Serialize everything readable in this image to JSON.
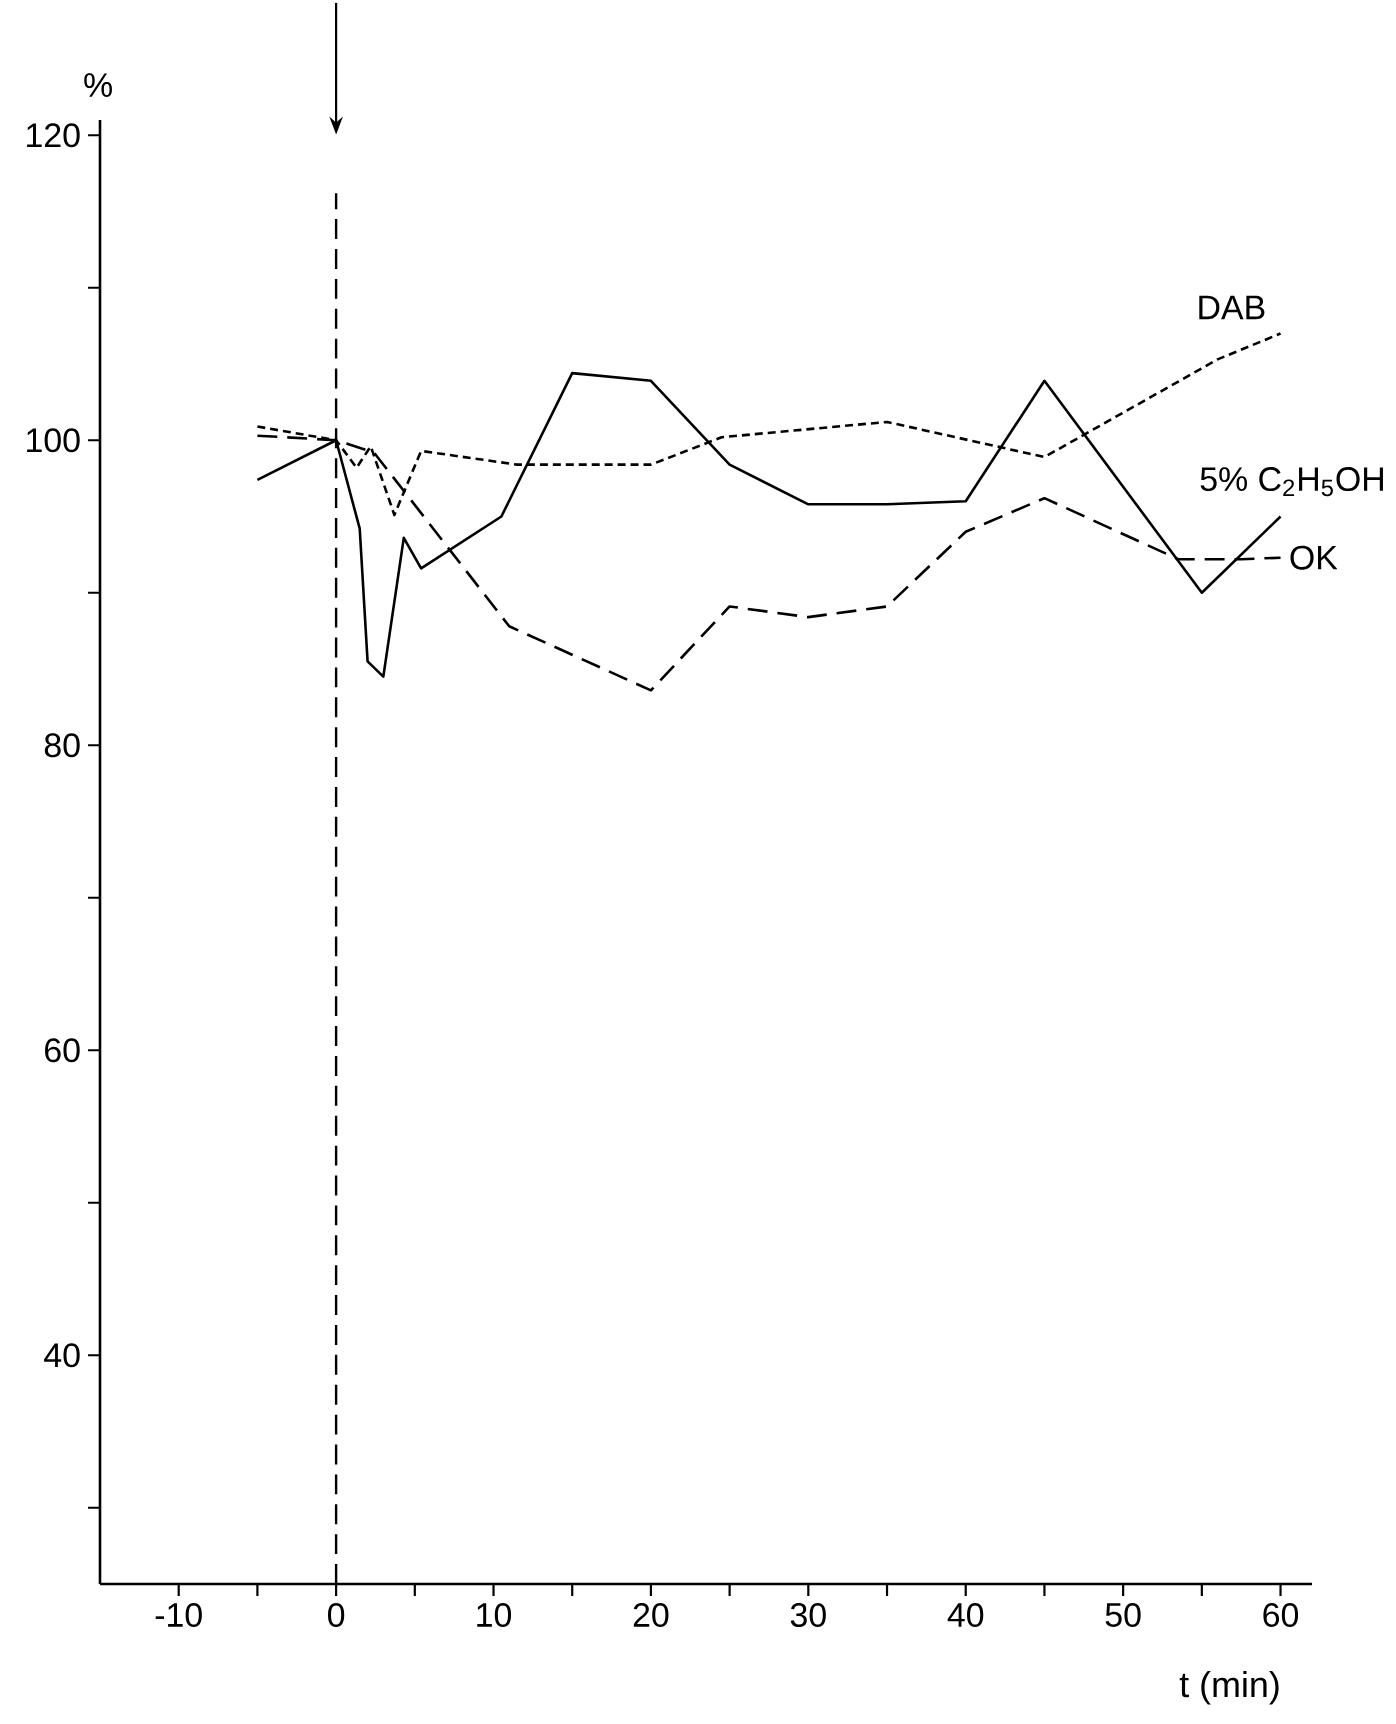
{
  "chart_data": {
    "type": "line",
    "xlabel": "t (min)",
    "ylabel": "%",
    "xlim": [
      -15,
      62
    ],
    "ylim": [
      25,
      121
    ],
    "xticks": [
      -10,
      {
        "value": -5,
        "label": null
      },
      0,
      {
        "value": 5,
        "label": null
      },
      10,
      {
        "value": 15,
        "label": null
      },
      20,
      {
        "value": 25,
        "label": null
      },
      30,
      {
        "value": 35,
        "label": null
      },
      40,
      {
        "value": 45,
        "label": null
      },
      50,
      {
        "value": 55,
        "label": null
      },
      60
    ],
    "yticks": [
      {
        "value": 30,
        "label": null
      },
      40,
      {
        "value": 50,
        "label": null
      },
      60,
      {
        "value": 70,
        "label": null
      },
      80,
      {
        "value": 90,
        "label": null
      },
      100,
      {
        "value": 110,
        "label": null
      },
      120
    ],
    "series": [
      {
        "name": "5% C$_{2}$H$_{5}$OH",
        "color": "#000000",
        "line_style": "solid",
        "x": [
          -5,
          0,
          1.5,
          2,
          3,
          4.3,
          5.4,
          10.5,
          15,
          20,
          25,
          30,
          35,
          40,
          45,
          55,
          60
        ],
        "values": [
          97.4,
          100,
          94.2,
          85.5,
          84.5,
          93.6,
          91.6,
          95,
          104.4,
          103.9,
          98.4,
          95.8,
          95.8,
          96,
          103.9,
          90,
          95
        ]
      },
      {
        "name": "OK",
        "color": "#000000",
        "line_style": "dashed",
        "x": [
          -5,
          0,
          2.4,
          11,
          20,
          25,
          30,
          35,
          40,
          45,
          53.5,
          57.5,
          60
        ],
        "values": [
          100.3,
          100,
          99.2,
          87.8,
          83.6,
          89.1,
          88.4,
          89.1,
          94,
          96.2,
          92.2,
          92.2,
          92.3
        ]
      },
      {
        "name": "DAB",
        "color": "#000000",
        "line_style": "dotted",
        "x": [
          -5,
          0,
          1.3,
          2.2,
          3.7,
          5.4,
          11.5,
          20,
          24.5,
          35,
          45,
          56,
          60
        ],
        "values": [
          100.9,
          100,
          98.2,
          99.6,
          95.1,
          99.3,
          98.4,
          98.4,
          100.2,
          101.2,
          98.9,
          105.3,
          107
        ]
      }
    ],
    "ref_lines": [
      {
        "axis": "x",
        "value": 0,
        "line_style": "dashed",
        "color": "#000000"
      }
    ]
  }
}
